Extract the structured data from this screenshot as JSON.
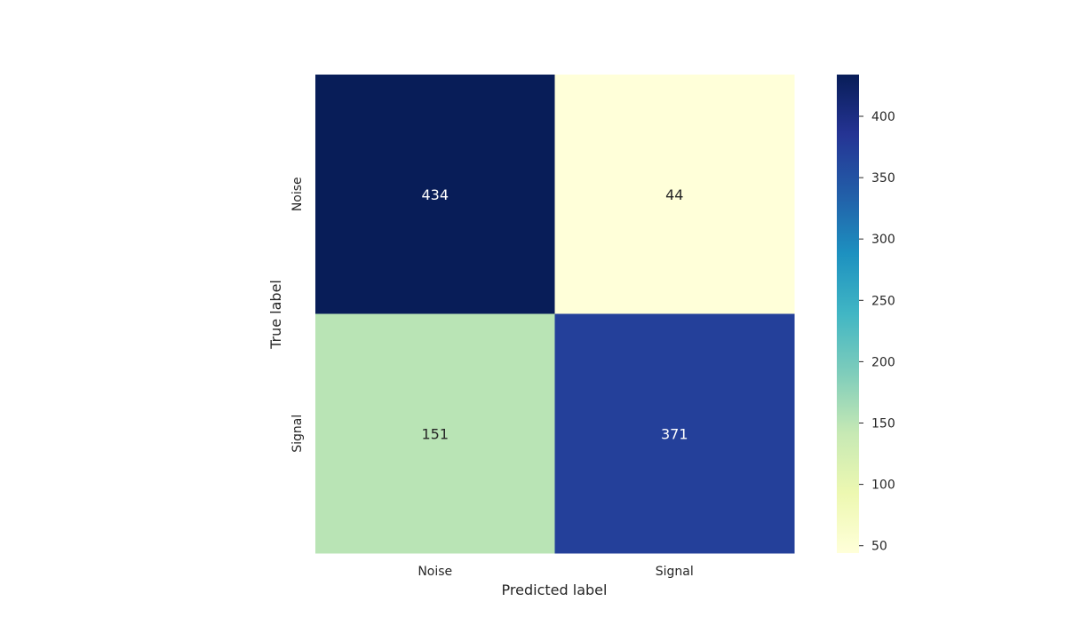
{
  "chart_data": {
    "type": "heatmap",
    "title": "",
    "xlabel": "Predicted label",
    "ylabel": "True label",
    "x_categories": [
      "Noise",
      "Signal"
    ],
    "y_categories": [
      "Noise",
      "Signal"
    ],
    "matrix": [
      [
        434,
        44
      ],
      [
        151,
        371
      ]
    ],
    "colormap": "YlGnBu",
    "colorbar": {
      "range": [
        44,
        434
      ],
      "ticks": [
        "50",
        "100",
        "150",
        "200",
        "250",
        "300",
        "350",
        "400"
      ]
    }
  }
}
